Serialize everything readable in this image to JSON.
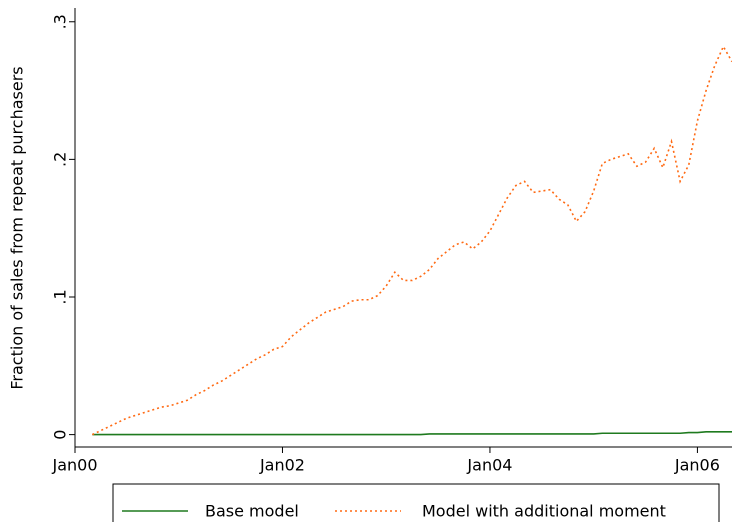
{
  "chart_data": {
    "type": "line",
    "ylabel": "Fraction of sales from repeat purchasers",
    "x": [
      2,
      3,
      4,
      5,
      6,
      7,
      8,
      9,
      10,
      11,
      12,
      13,
      14,
      15,
      16,
      17,
      18,
      19,
      20,
      21,
      22,
      23,
      24,
      25,
      26,
      27,
      28,
      29,
      30,
      31,
      32,
      33,
      34,
      35,
      36,
      37,
      38,
      39,
      40,
      41,
      42,
      43,
      44,
      45,
      46,
      47,
      48,
      49,
      50,
      51,
      52,
      53,
      54,
      55,
      56,
      57,
      58,
      59,
      60,
      61,
      62,
      63,
      64,
      65,
      66,
      67,
      68,
      69,
      70,
      71,
      72,
      73,
      74,
      75,
      76
    ],
    "series": [
      {
        "name": "Base model",
        "color": "#1f7a1f",
        "style": "solid",
        "values": [
          0,
          0,
          0,
          0,
          0,
          0,
          0,
          0,
          0,
          0,
          0,
          0,
          0,
          0,
          0,
          0,
          0,
          0,
          0,
          0,
          0,
          0,
          0,
          0,
          0,
          0,
          0,
          0,
          0,
          0,
          0,
          0,
          0,
          0,
          0,
          0,
          0,
          0,
          0,
          0.0005,
          0.0005,
          0.0005,
          0.0005,
          0.0005,
          0.0005,
          0.0005,
          0.0005,
          0.0005,
          0.0005,
          0.0005,
          0.0005,
          0.0005,
          0.0005,
          0.0005,
          0.0005,
          0.0005,
          0.0005,
          0.0005,
          0.0005,
          0.001,
          0.001,
          0.001,
          0.001,
          0.001,
          0.001,
          0.001,
          0.001,
          0.001,
          0.001,
          0.0015,
          0.0015,
          0.002,
          0.002,
          0.002,
          0.002
        ]
      },
      {
        "name": "Model with additional moment",
        "color": "#ff6a13",
        "style": "dotted",
        "values": [
          0,
          0.003,
          0.006,
          0.009,
          0.012,
          0.014,
          0.016,
          0.018,
          0.02,
          0.021,
          0.023,
          0.025,
          0.029,
          0.032,
          0.036,
          0.039,
          0.043,
          0.047,
          0.051,
          0.055,
          0.058,
          0.062,
          0.064,
          0.071,
          0.076,
          0.081,
          0.085,
          0.089,
          0.091,
          0.093,
          0.097,
          0.098,
          0.098,
          0.101,
          0.108,
          0.118,
          0.112,
          0.112,
          0.115,
          0.12,
          0.128,
          0.133,
          0.138,
          0.14,
          0.135,
          0.14,
          0.148,
          0.16,
          0.172,
          0.181,
          0.184,
          0.176,
          0.177,
          0.178,
          0.171,
          0.167,
          0.155,
          0.162,
          0.177,
          0.197,
          0.2,
          0.202,
          0.204,
          0.195,
          0.198,
          0.208,
          0.194,
          0.213,
          0.184,
          0.196,
          0.228,
          0.25,
          0.268,
          0.282,
          0.271
        ]
      }
    ],
    "xlim": [
      0,
      76
    ],
    "xticks": [
      {
        "value": 0,
        "label": "Jan00"
      },
      {
        "value": 24,
        "label": "Jan02"
      },
      {
        "value": 48,
        "label": "Jan04"
      },
      {
        "value": 72,
        "label": "Jan06"
      }
    ],
    "ylim": [
      -0.009,
      0.31
    ],
    "yticks": [
      0,
      {
        "value": 0.1,
        "label": ".1"
      },
      {
        "value": 0.2,
        "label": ".2"
      },
      {
        "value": 0.3,
        "label": ".3"
      }
    ],
    "grid": false,
    "legend": "bottom"
  }
}
